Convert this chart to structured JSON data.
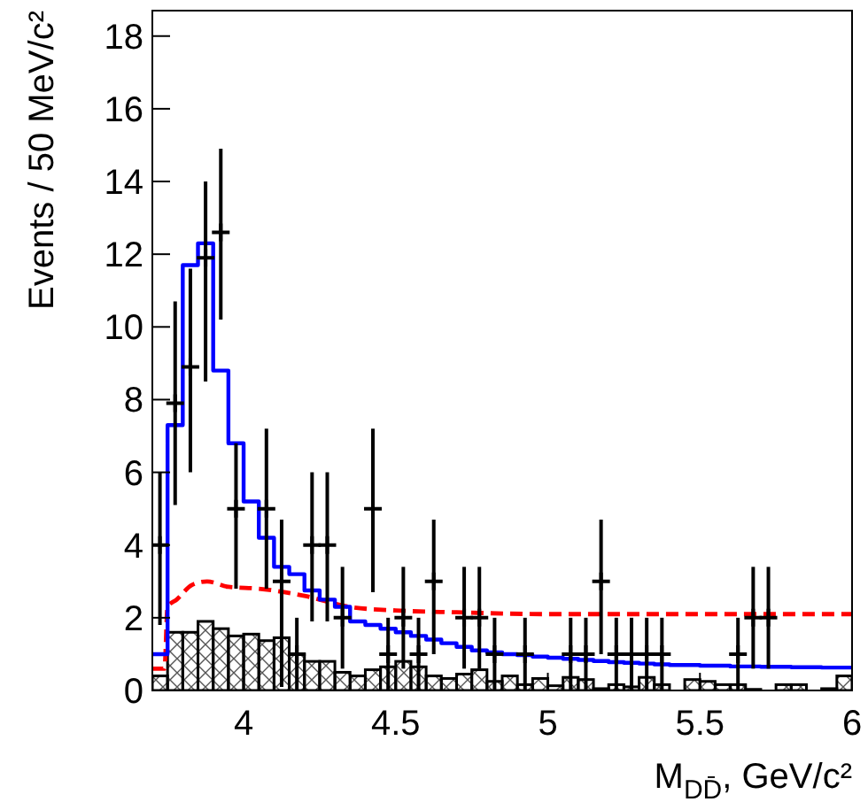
{
  "chart_data": {
    "type": "scatter",
    "xlabel": "M$_{DD̄}$, GeV/c²",
    "ylabel": "Events / 50 MeV/c²",
    "xlim": [
      3.7,
      6
    ],
    "ylim": [
      0,
      18.7
    ],
    "xticks": [
      4,
      4.5,
      5,
      5.5,
      6
    ],
    "yticks": [
      0,
      2,
      4,
      6,
      8,
      10,
      12,
      14,
      16,
      18
    ],
    "grid": false,
    "series": [
      {
        "type": "histogram",
        "color": "#000000",
        "bins": [
          3.7,
          3.75,
          3.8,
          3.85,
          3.9,
          3.95,
          4.0,
          4.05,
          4.1,
          4.15,
          4.2,
          4.25,
          4.3,
          4.35,
          4.4,
          4.45,
          4.5,
          4.55,
          4.6,
          4.65,
          4.7,
          4.75,
          4.8,
          4.85,
          4.9,
          4.95,
          5.0,
          5.05,
          5.1,
          5.15,
          5.2,
          5.25,
          5.3,
          5.35,
          5.4,
          5.45,
          5.5,
          5.55,
          5.6,
          5.65,
          5.7,
          5.75,
          5.8,
          5.85,
          5.9,
          5.95,
          6.0
        ],
        "values": [
          0.4,
          1.6,
          1.6,
          1.9,
          1.7,
          1.5,
          1.55,
          1.37,
          1.45,
          1.0,
          0.8,
          0.8,
          0.5,
          0.4,
          0.57,
          0.65,
          0.8,
          0.65,
          0.4,
          0.33,
          0.45,
          0.57,
          0.25,
          0.4,
          0.16,
          0.33,
          0.13,
          0.36,
          0.3,
          0.05,
          0.16,
          0.1,
          0.36,
          0.16,
          0,
          0.3,
          0.25,
          0.16,
          0.16,
          0.03,
          0,
          0.16,
          0.16,
          0,
          0.05,
          0.4
        ]
      },
      {
        "type": "line",
        "color": "#ff0000",
        "line_style": "dashed",
        "x": [
          3.7,
          3.74,
          3.75,
          3.78,
          3.83,
          3.88,
          3.95,
          4.05,
          4.2,
          4.35,
          4.5,
          4.7,
          5.0,
          5.5,
          6.0
        ],
        "values": [
          0.6,
          0.6,
          2.3,
          2.5,
          2.9,
          3.0,
          2.85,
          2.8,
          2.6,
          2.3,
          2.2,
          2.15,
          2.1,
          2.1,
          2.1
        ]
      },
      {
        "type": "step",
        "color": "#0000ff",
        "x": [
          3.7,
          3.75,
          3.8,
          3.85,
          3.9,
          3.95,
          4.0,
          4.05,
          4.1,
          4.15,
          4.2,
          4.25,
          4.3,
          4.35,
          4.4,
          4.45,
          4.5,
          4.55,
          4.6,
          4.65,
          4.7,
          4.75,
          4.8,
          4.85,
          4.9,
          4.95,
          5.0,
          5.05,
          5.1,
          5.15,
          5.2,
          5.25,
          5.3,
          5.35,
          5.4,
          5.45,
          5.5,
          5.55,
          5.6,
          5.65,
          5.7,
          5.75,
          5.8,
          5.85,
          5.9,
          5.95,
          6.0
        ],
        "values": [
          1.0,
          7.3,
          11.7,
          12.3,
          8.8,
          6.8,
          5.2,
          4.2,
          3.4,
          3.2,
          2.75,
          2.5,
          2.3,
          1.9,
          1.8,
          1.7,
          1.6,
          1.5,
          1.4,
          1.3,
          1.2,
          1.1,
          1.05,
          1.0,
          0.97,
          0.93,
          0.9,
          0.87,
          0.84,
          0.81,
          0.78,
          0.76,
          0.74,
          0.72,
          0.7,
          0.7,
          0.68,
          0.68,
          0.66,
          0.66,
          0.65,
          0.65,
          0.64,
          0.64,
          0.63,
          0.63,
          0.63
        ]
      },
      {
        "color": "#000000",
        "marker": "cross",
        "x": [
          3.725,
          3.775,
          3.825,
          3.875,
          3.925,
          3.975,
          4.075,
          4.125,
          4.175,
          4.225,
          4.275,
          4.325,
          4.425,
          4.475,
          4.525,
          4.575,
          4.625,
          4.725,
          4.775,
          4.825,
          4.925,
          5.075,
          5.125,
          5.175,
          5.225,
          5.275,
          5.325,
          5.375,
          5.625,
          5.675,
          5.725
        ],
        "values": [
          4.0,
          7.9,
          8.9,
          11.9,
          12.6,
          5.0,
          5.0,
          3.0,
          1.0,
          4.0,
          4.0,
          2.0,
          5.0,
          1.0,
          2.0,
          1.0,
          3.0,
          2.0,
          2.0,
          1.0,
          1.0,
          1.0,
          1.0,
          3.0,
          1.0,
          1.0,
          1.0,
          1.0,
          1.0,
          2.0,
          2.0
        ],
        "errors": [
          [
            1.8,
            6.0
          ],
          [
            5.1,
            10.7
          ],
          [
            6.0,
            11.6
          ],
          [
            8.5,
            14.0
          ],
          [
            10.2,
            14.9
          ],
          [
            2.8,
            6.8
          ],
          [
            2.8,
            7.2
          ],
          [
            0.1,
            4.7
          ],
          [
            0,
            2.0
          ],
          [
            1.9,
            6.0
          ],
          [
            1.9,
            6.0
          ],
          [
            0.6,
            3.4
          ],
          [
            2.7,
            7.2
          ],
          [
            0,
            2.0
          ],
          [
            0.6,
            3.4
          ],
          [
            0,
            2.0
          ],
          [
            1.0,
            4.7
          ],
          [
            0.6,
            3.4
          ],
          [
            0.6,
            3.4
          ],
          [
            0,
            2.0
          ],
          [
            0,
            2.0
          ],
          [
            0,
            2.0
          ],
          [
            0,
            2.0
          ],
          [
            1.0,
            4.7
          ],
          [
            0,
            2.0
          ],
          [
            0,
            2.0
          ],
          [
            0,
            2.0
          ],
          [
            0,
            2.0
          ],
          [
            0,
            2.0
          ],
          [
            0.6,
            3.4
          ],
          [
            0.6,
            3.4
          ]
        ]
      }
    ]
  }
}
